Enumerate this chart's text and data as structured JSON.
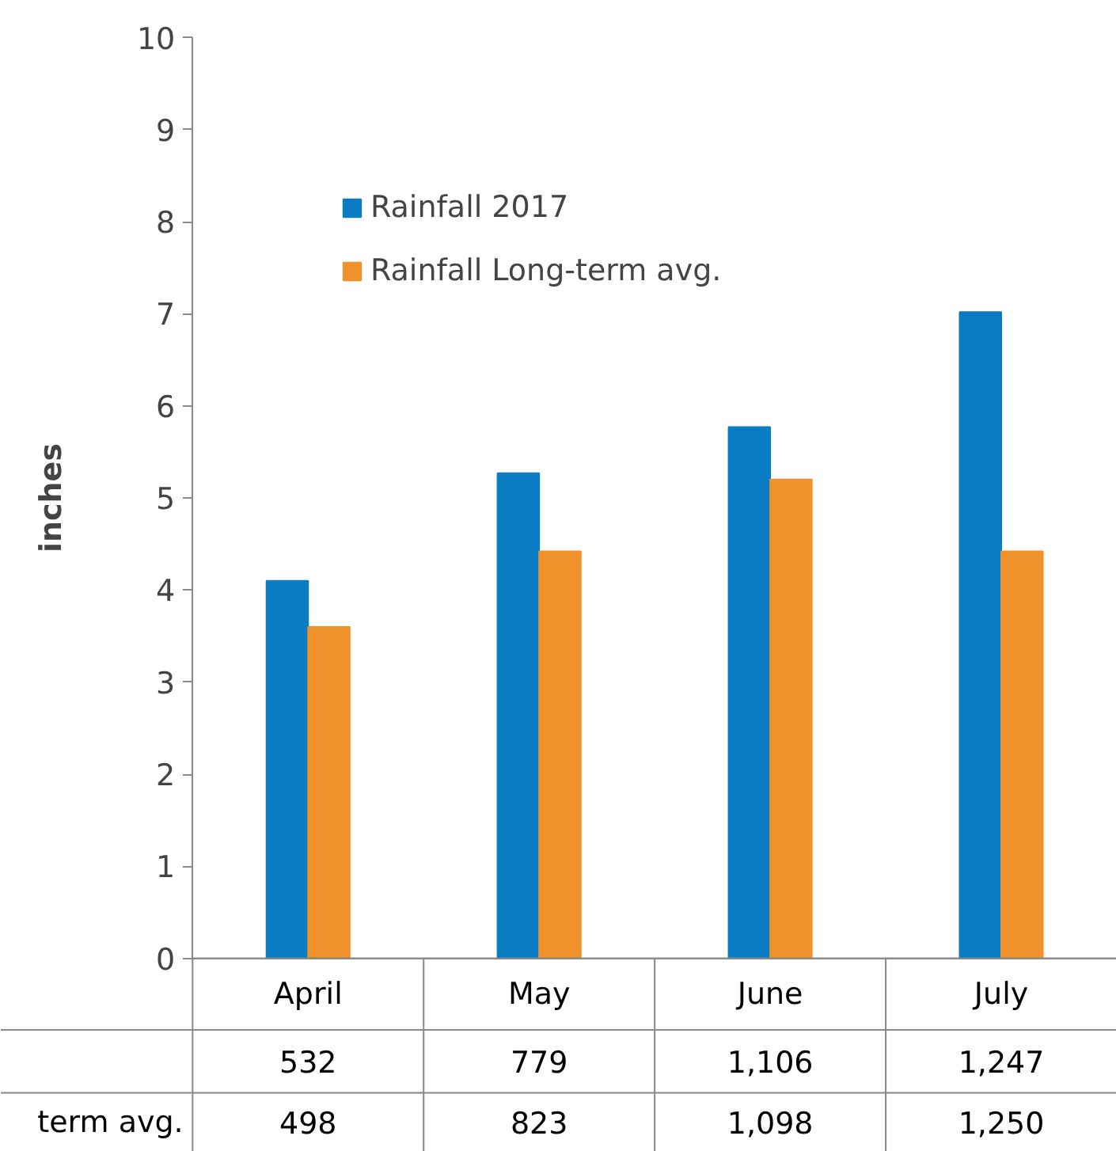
{
  "chart_data": {
    "type": "bar",
    "ylabel": "inches",
    "categories": [
      "April",
      "May",
      "June",
      "July"
    ],
    "series": [
      {
        "name": "Rainfall 2017",
        "color": "#0a7cc4",
        "values": [
          4.1,
          5.27,
          5.77,
          7.02
        ]
      },
      {
        "name": "Rainfall Long-term avg.",
        "color": "#f0922b",
        "values": [
          3.6,
          4.42,
          5.2,
          4.42
        ]
      }
    ],
    "ylim": [
      0,
      10
    ],
    "yticks": [
      0,
      1,
      2,
      3,
      4,
      5,
      6,
      7,
      8,
      9,
      10
    ],
    "grid": false,
    "legend": "top",
    "annotations": [
      "532",
      "779",
      "1,106",
      "1,247",
      "term avg.",
      "498",
      "823",
      "1,098",
      "1,250"
    ]
  }
}
